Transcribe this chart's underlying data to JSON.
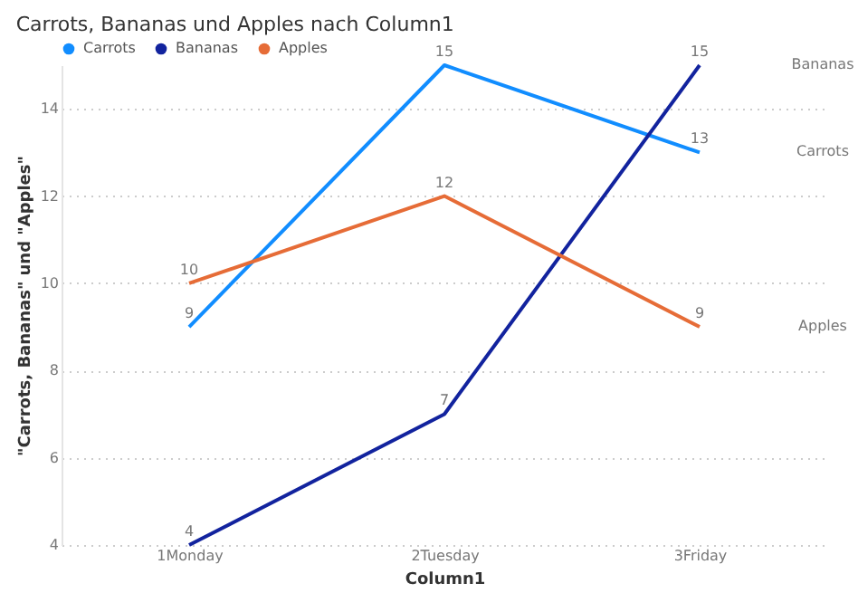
{
  "chart_data": {
    "type": "line",
    "title": "Carrots, Bananas und Apples nach Column1",
    "xlabel": "Column1",
    "ylabel": "\"Carrots, Bananas\" und \"Apples\"",
    "categories": [
      "1Monday",
      "2Tuesday",
      "3Friday"
    ],
    "series": [
      {
        "name": "Carrots",
        "color": "#118dff",
        "values": [
          9,
          15,
          13
        ]
      },
      {
        "name": "Bananas",
        "color": "#12239e",
        "values": [
          4,
          7,
          15
        ]
      },
      {
        "name": "Apples",
        "color": "#e66c37",
        "values": [
          10,
          12,
          9
        ]
      }
    ],
    "ylim": [
      4,
      15
    ],
    "yticks": [
      4,
      6,
      8,
      10,
      12,
      14
    ],
    "grid": "y",
    "legend": "top left",
    "data_labels": true,
    "marker": "none",
    "line_style": "solid"
  }
}
